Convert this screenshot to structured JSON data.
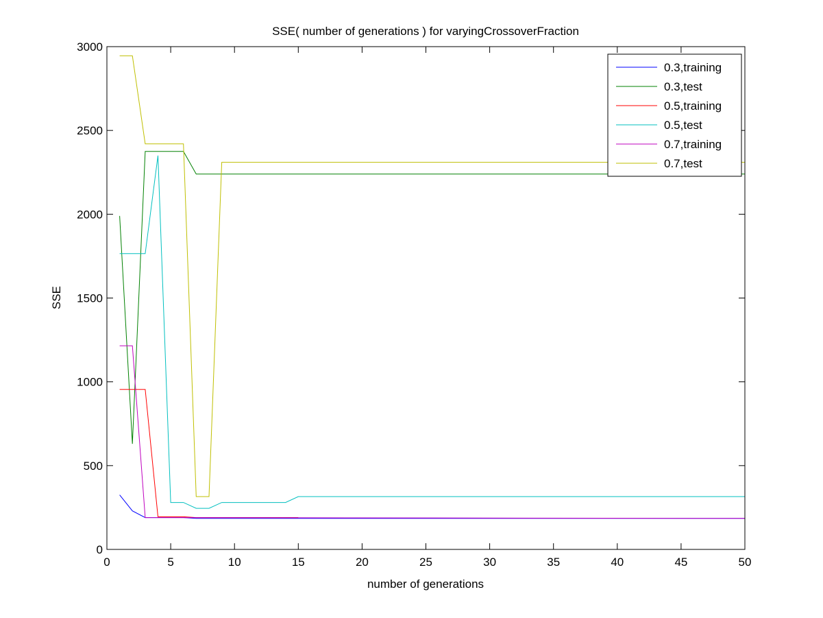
{
  "chart_data": {
    "type": "line",
    "title": "SSE( number of generations ) for varyingCrossoverFraction",
    "xlabel": "number of generations",
    "ylabel": "SSE",
    "xlim": [
      0,
      50
    ],
    "ylim": [
      0,
      3000
    ],
    "xticks": [
      0,
      5,
      10,
      15,
      20,
      25,
      30,
      35,
      40,
      45,
      50
    ],
    "yticks": [
      0,
      500,
      1000,
      1500,
      2000,
      2500,
      3000
    ],
    "grid": false,
    "legend_position": "top-right",
    "series": [
      {
        "name": "0.3,training",
        "color": "#0000ff",
        "x": [
          1,
          2,
          3,
          4,
          5,
          6,
          7,
          50
        ],
        "y": [
          325,
          230,
          190,
          190,
          190,
          190,
          185,
          185
        ]
      },
      {
        "name": "0.3,test",
        "color": "#008000",
        "x": [
          1,
          2,
          3,
          4,
          5,
          6,
          7,
          8,
          50
        ],
        "y": [
          1990,
          630,
          2375,
          2375,
          2375,
          2375,
          2240,
          2240,
          2240
        ]
      },
      {
        "name": "0.5,training",
        "color": "#ff0000",
        "x": [
          1,
          2,
          3,
          4,
          5,
          6,
          7,
          15
        ],
        "y": [
          955,
          955,
          955,
          195,
          195,
          195,
          190,
          190
        ]
      },
      {
        "name": "0.5,test",
        "color": "#00bfbf",
        "x": [
          1,
          2,
          3,
          4,
          5,
          6,
          7,
          8,
          9,
          10,
          11,
          12,
          13,
          14,
          15,
          50
        ],
        "y": [
          1765,
          1765,
          1765,
          2350,
          280,
          280,
          245,
          245,
          280,
          280,
          280,
          280,
          280,
          280,
          315,
          315
        ]
      },
      {
        "name": "0.7,training",
        "color": "#bf00bf",
        "x": [
          1,
          2,
          3,
          4,
          5,
          50
        ],
        "y": [
          1215,
          1215,
          190,
          190,
          190,
          185
        ]
      },
      {
        "name": "0.7,test",
        "color": "#bfbf00",
        "x": [
          1,
          2,
          3,
          4,
          5,
          6,
          7,
          8,
          9,
          50
        ],
        "y": [
          2945,
          2945,
          2420,
          2420,
          2420,
          2420,
          315,
          315,
          2310,
          2310
        ]
      }
    ]
  }
}
